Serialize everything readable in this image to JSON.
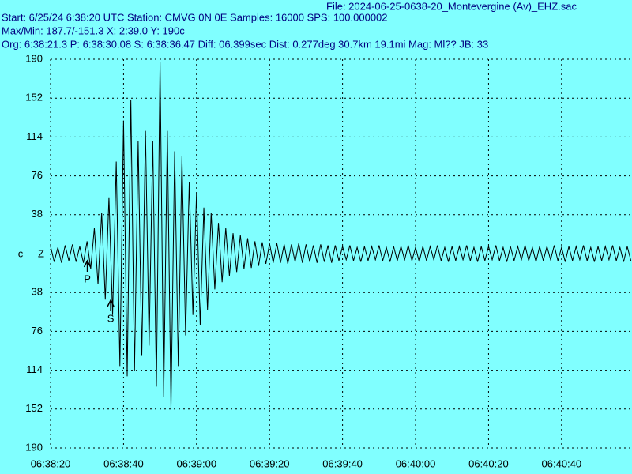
{
  "chart_data": {
    "type": "line",
    "header_lines": [
      "File: 2024-06-25-0638-20_Montevergine (Av)_EHZ.sac",
      "Start: 6/25/24  6:38:20 UTC Station: CMVG 0N 0E Samples: 16000  SPS: 100.000002",
      "Max/Min: 187.7/-151.3 X: 2:39.0 Y: 190c",
      "Org: 6:38:21.3 P: 6:38:30.08 S: 6:38:36.47 Diff: 06.399sec Dist: 0.277deg 30.7km 19.1mi  Mag: Ml?? JB: 33"
    ],
    "channel": "c",
    "component": "Z",
    "background": "#80ffff",
    "color": "#000000",
    "grid": true,
    "xlim": [
      0,
      159.3
    ],
    "ylim": [
      -190,
      190
    ],
    "xticks": [
      {
        "value": 0,
        "label": "06:38:20"
      },
      {
        "value": 20,
        "label": "06:38:40"
      },
      {
        "value": 40,
        "label": "06:39:00"
      },
      {
        "value": 60,
        "label": "06:39:20"
      },
      {
        "value": 80,
        "label": "06:39:40"
      },
      {
        "value": 100,
        "label": "06:40:00"
      },
      {
        "value": 120,
        "label": "06:40:20"
      },
      {
        "value": 140,
        "label": "06:40:40"
      }
    ],
    "yticks": [
      190,
      152,
      114,
      76,
      38,
      {
        "value": -38,
        "label": "38"
      },
      {
        "value": -76,
        "label": "76"
      },
      {
        "value": -114,
        "label": "114"
      },
      {
        "value": -152,
        "label": "152"
      },
      {
        "value": -190,
        "label": "190"
      }
    ],
    "markers": [
      {
        "label": "P",
        "x": 10.08
      },
      {
        "label": "S",
        "x": 16.47
      }
    ],
    "x": [
      0,
      1,
      2,
      3,
      4,
      5,
      6,
      7,
      8,
      9,
      10,
      11,
      12,
      13,
      14,
      15,
      16,
      17,
      18,
      19,
      20,
      21,
      22,
      23,
      24,
      25,
      26,
      27,
      28,
      29,
      30,
      31,
      32,
      33,
      34,
      35,
      36,
      37,
      38,
      39,
      40,
      41,
      42,
      43,
      44,
      45,
      46,
      47,
      48,
      49,
      50,
      51,
      52,
      53,
      54,
      55,
      56,
      57,
      58,
      59,
      60,
      61,
      62,
      63,
      64,
      65,
      66,
      67,
      68,
      69,
      70,
      71,
      72,
      73,
      74,
      75,
      76,
      77,
      78,
      79,
      80,
      81,
      82,
      83,
      84,
      85,
      86,
      87,
      88,
      89,
      90,
      91,
      92,
      93,
      94,
      95,
      96,
      97,
      98,
      99,
      100,
      101,
      102,
      103,
      104,
      105,
      106,
      107,
      108,
      109,
      110,
      111,
      112,
      113,
      114,
      115,
      116,
      117,
      118,
      119,
      120,
      121,
      122,
      123,
      124,
      125,
      126,
      127,
      128,
      129,
      130,
      131,
      132,
      133,
      134,
      135,
      136,
      137,
      138,
      139,
      140,
      141,
      142,
      143,
      144,
      145,
      146,
      147,
      148,
      149,
      150,
      151,
      152,
      153,
      154,
      155,
      156,
      157,
      158,
      159
    ],
    "values": [
      7,
      -8,
      6,
      -9,
      8,
      -7,
      9,
      -8,
      7,
      -9,
      12,
      -15,
      25,
      -30,
      40,
      -45,
      55,
      -60,
      90,
      -110,
      130,
      -120,
      150,
      -115,
      110,
      -100,
      120,
      -90,
      110,
      -130,
      187.7,
      -140,
      120,
      -151.3,
      100,
      -110,
      95,
      -80,
      70,
      -60,
      60,
      -70,
      45,
      -55,
      40,
      -35,
      30,
      -28,
      25,
      -22,
      20,
      -18,
      18,
      -15,
      15,
      -14,
      12,
      -12,
      11,
      -10,
      10,
      -9,
      10,
      -9,
      9,
      -10,
      9,
      -8,
      10,
      -9,
      9,
      -8,
      8,
      -9,
      9,
      -8,
      8,
      -9,
      8,
      -7,
      7,
      -6,
      8,
      -7,
      6,
      -8,
      7,
      -7,
      7,
      -6,
      8,
      -7,
      6,
      -8,
      7,
      -7,
      7,
      -6,
      8,
      -7,
      6,
      -8,
      7,
      -7,
      7,
      -6,
      8,
      -7,
      6,
      -8,
      7,
      -7,
      7,
      -6,
      8,
      -7,
      6,
      -8,
      7,
      -7,
      7,
      -6,
      8,
      -7,
      6,
      -8,
      7,
      -7,
      7,
      -6,
      8,
      -7,
      6,
      -8,
      7,
      -7,
      7,
      -6,
      8,
      -7,
      6,
      -8,
      7,
      -7,
      7,
      -6,
      8,
      -7,
      6,
      -8,
      7,
      -7,
      7,
      -6,
      8,
      -7,
      6,
      -8,
      7,
      -7
    ]
  }
}
